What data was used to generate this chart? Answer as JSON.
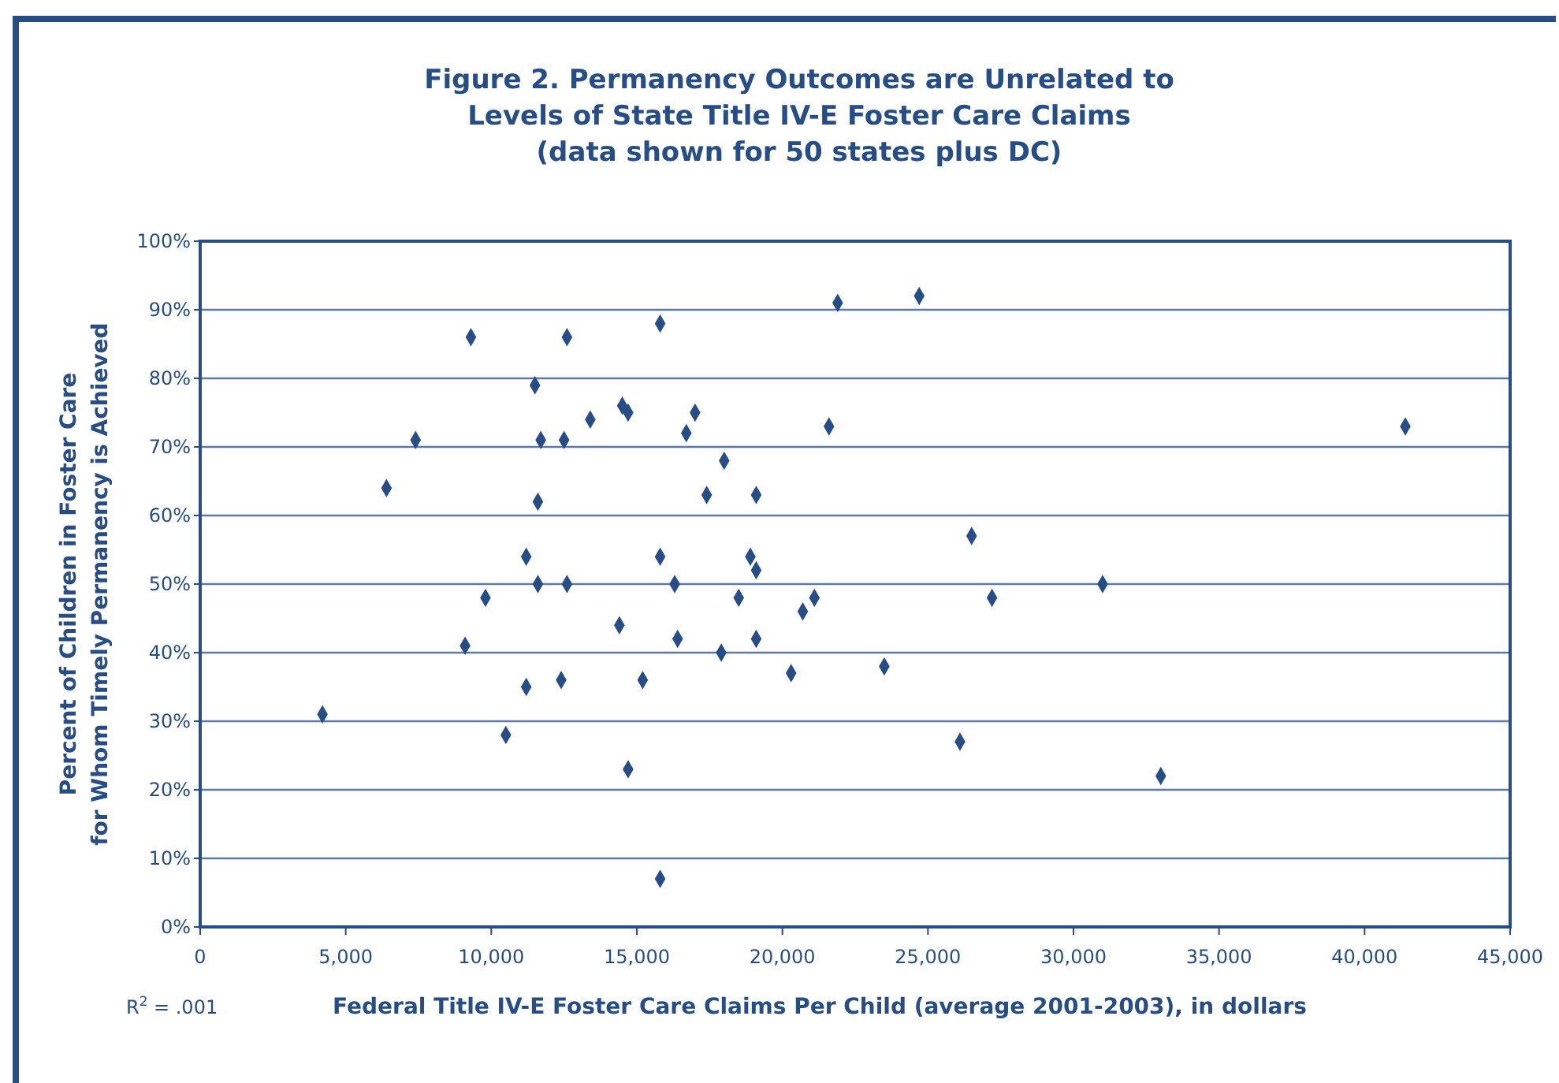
{
  "chart_data": {
    "type": "scatter",
    "title": "Figure 2.  Permanency Outcomes are Unrelated to\nLevels of State Title IV-E Foster Care Claims\n(data shown for 50 states plus DC)",
    "xlabel": "Federal Title IV-E Foster Care Claims Per Child (average 2001-2003), in dollars",
    "ylabel": "Percent of Children in Foster Care\nfor Whom Timely Permanency is Achieved",
    "annotations": [
      "R$^{2}$ = .001"
    ],
    "series": [
      {
        "color": "#264d85",
        "x": [
          9300,
          12600,
          15800,
          11500,
          14500,
          14700,
          13400,
          7400,
          11700,
          12500,
          6400,
          11600,
          11200,
          15800,
          11600,
          12600,
          9800,
          14400,
          9100,
          11200,
          12400,
          15200,
          4200,
          10500,
          14700,
          15800,
          21900,
          24700,
          17000,
          16700,
          21600,
          18000,
          17400,
          19100,
          26500,
          18900,
          19100,
          16300,
          31000,
          18500,
          21100,
          20700,
          27200,
          16400,
          19100,
          17900,
          20300,
          23500,
          26100,
          41400,
          33000
        ],
        "values": [
          86,
          86,
          88,
          79,
          76,
          75,
          74,
          71,
          71,
          71,
          64,
          62,
          54,
          54,
          50,
          50,
          48,
          44,
          41,
          35,
          36,
          36,
          31,
          28,
          23,
          7,
          91,
          92,
          75,
          72,
          73,
          68,
          63,
          63,
          57,
          54,
          52,
          50,
          50,
          48,
          48,
          46,
          48,
          42,
          42,
          40,
          37,
          38,
          27,
          73,
          22
        ]
      }
    ],
    "marker": "diamond",
    "grid": "y",
    "xlim": [
      0,
      45000
    ],
    "xticks": [
      {
        "value": 0,
        "label": "0"
      },
      {
        "value": 5000,
        "label": "5,000"
      },
      {
        "value": 10000,
        "label": "10,000"
      },
      {
        "value": 15000,
        "label": "15,000"
      },
      {
        "value": 20000,
        "label": "20,000"
      },
      {
        "value": 25000,
        "label": "25,000"
      },
      {
        "value": 30000,
        "label": "30,000"
      },
      {
        "value": 35000,
        "label": "35,000"
      },
      {
        "value": 40000,
        "label": "40,000"
      },
      {
        "value": 45000,
        "label": "45,000"
      }
    ],
    "ylim": [
      0,
      100
    ],
    "yticks": [
      {
        "value": 0,
        "label": "0%"
      },
      {
        "value": 10,
        "label": "10%"
      },
      {
        "value": 20,
        "label": "20%"
      },
      {
        "value": 30,
        "label": "30%"
      },
      {
        "value": 40,
        "label": "40%"
      },
      {
        "value": 50,
        "label": "50%"
      },
      {
        "value": 60,
        "label": "60%"
      },
      {
        "value": 70,
        "label": "70%"
      },
      {
        "value": 80,
        "label": "80%"
      },
      {
        "value": 90,
        "label": "90%"
      },
      {
        "value": 100,
        "label": "100%"
      }
    ]
  }
}
